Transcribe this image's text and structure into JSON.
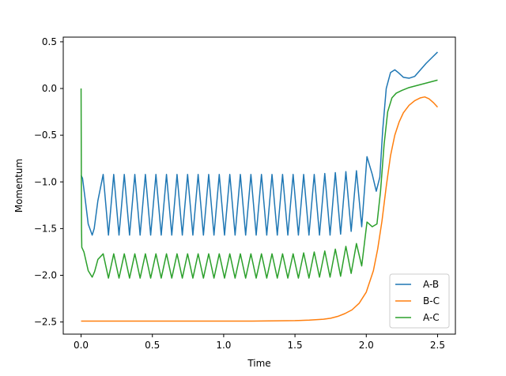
{
  "chart_data": {
    "type": "line",
    "title": "",
    "xlabel": "Time",
    "ylabel": "Momentum",
    "xlim": [
      -0.125,
      2.625
    ],
    "ylim": [
      -2.63,
      0.55
    ],
    "xticks": [
      0.0,
      0.5,
      1.0,
      1.5,
      2.0,
      2.5
    ],
    "xtick_labels": [
      "0.0",
      "0.5",
      "1.0",
      "1.5",
      "2.0",
      "2.5"
    ],
    "yticks": [
      0.5,
      0.0,
      -0.5,
      -1.0,
      -1.5,
      -2.0,
      -2.5
    ],
    "ytick_labels": [
      "0.5",
      "0.0",
      "−0.5",
      "−1.0",
      "−1.5",
      "−2.0",
      "−2.5"
    ],
    "grid": false,
    "legend_position": "lower-right",
    "series": [
      {
        "name": "A-B",
        "color": "#1f77b4",
        "x": [
          0.0,
          0.01,
          0.03,
          0.05,
          0.078,
          0.092,
          0.118,
          0.155,
          0.192,
          0.229,
          0.266,
          0.303,
          0.34,
          0.377,
          0.414,
          0.451,
          0.488,
          0.525,
          0.562,
          0.599,
          0.636,
          0.673,
          0.71,
          0.747,
          0.784,
          0.821,
          0.858,
          0.895,
          0.932,
          0.969,
          1.006,
          1.043,
          1.08,
          1.117,
          1.154,
          1.191,
          1.228,
          1.265,
          1.302,
          1.339,
          1.376,
          1.413,
          1.45,
          1.487,
          1.524,
          1.561,
          1.598,
          1.635,
          1.672,
          1.709,
          1.746,
          1.783,
          1.82,
          1.857,
          1.894,
          1.931,
          1.968,
          2.005,
          2.042,
          2.07,
          2.095,
          2.115,
          2.14,
          2.17,
          2.2,
          2.225,
          2.26,
          2.3,
          2.34,
          2.38,
          2.42,
          2.46,
          2.5
        ],
        "y": [
          -0.93,
          -0.96,
          -1.2,
          -1.45,
          -1.57,
          -1.5,
          -1.2,
          -0.92,
          -1.57,
          -0.92,
          -1.57,
          -0.92,
          -1.57,
          -0.92,
          -1.57,
          -0.92,
          -1.57,
          -0.92,
          -1.57,
          -0.92,
          -1.57,
          -0.92,
          -1.57,
          -0.92,
          -1.57,
          -0.92,
          -1.57,
          -0.92,
          -1.57,
          -0.92,
          -1.57,
          -0.92,
          -1.57,
          -0.92,
          -1.57,
          -0.92,
          -1.57,
          -0.92,
          -1.57,
          -0.92,
          -1.57,
          -0.92,
          -1.57,
          -0.92,
          -1.57,
          -0.92,
          -1.57,
          -0.92,
          -1.57,
          -0.91,
          -1.57,
          -0.9,
          -1.56,
          -0.89,
          -1.53,
          -0.88,
          -1.48,
          -0.73,
          -0.92,
          -1.1,
          -0.95,
          -0.45,
          0.0,
          0.17,
          0.2,
          0.17,
          0.12,
          0.11,
          0.13,
          0.2,
          0.27,
          0.33,
          0.39
        ]
      },
      {
        "name": "B-C",
        "color": "#ff7f0e",
        "x": [
          0.0,
          0.3,
          0.6,
          0.9,
          1.2,
          1.5,
          1.6,
          1.7,
          1.75,
          1.8,
          1.85,
          1.9,
          1.95,
          2.0,
          2.05,
          2.08,
          2.11,
          2.14,
          2.17,
          2.2,
          2.23,
          2.26,
          2.3,
          2.34,
          2.38,
          2.41,
          2.44,
          2.47,
          2.5
        ],
        "y": [
          -2.49,
          -2.49,
          -2.49,
          -2.49,
          -2.49,
          -2.485,
          -2.48,
          -2.47,
          -2.46,
          -2.44,
          -2.41,
          -2.37,
          -2.3,
          -2.18,
          -1.95,
          -1.72,
          -1.42,
          -1.05,
          -0.72,
          -0.5,
          -0.36,
          -0.26,
          -0.18,
          -0.13,
          -0.1,
          -0.09,
          -0.11,
          -0.15,
          -0.2
        ]
      },
      {
        "name": "A-C",
        "color": "#2ca02c",
        "x": [
          0.0,
          0.001,
          0.003,
          0.005,
          0.02,
          0.05,
          0.078,
          0.095,
          0.118,
          0.155,
          0.192,
          0.229,
          0.266,
          0.303,
          0.34,
          0.377,
          0.414,
          0.451,
          0.488,
          0.525,
          0.562,
          0.599,
          0.636,
          0.673,
          0.71,
          0.747,
          0.784,
          0.821,
          0.858,
          0.895,
          0.932,
          0.969,
          1.006,
          1.043,
          1.08,
          1.117,
          1.154,
          1.191,
          1.228,
          1.265,
          1.302,
          1.339,
          1.376,
          1.413,
          1.45,
          1.487,
          1.524,
          1.561,
          1.598,
          1.635,
          1.672,
          1.709,
          1.746,
          1.783,
          1.82,
          1.857,
          1.894,
          1.931,
          1.968,
          2.005,
          2.042,
          2.075,
          2.1,
          2.125,
          2.15,
          2.18,
          2.21,
          2.25,
          2.3,
          2.35,
          2.4,
          2.45,
          2.5
        ],
        "y": [
          0.0,
          -0.5,
          -1.5,
          -1.7,
          -1.75,
          -1.95,
          -2.02,
          -1.96,
          -1.83,
          -1.77,
          -2.03,
          -1.77,
          -2.03,
          -1.77,
          -2.03,
          -1.77,
          -2.03,
          -1.77,
          -2.03,
          -1.77,
          -2.03,
          -1.77,
          -2.03,
          -1.77,
          -2.03,
          -1.77,
          -2.03,
          -1.77,
          -2.03,
          -1.77,
          -2.03,
          -1.77,
          -2.03,
          -1.77,
          -2.03,
          -1.77,
          -2.03,
          -1.77,
          -2.03,
          -1.77,
          -2.03,
          -1.77,
          -2.03,
          -1.77,
          -2.03,
          -1.77,
          -2.03,
          -1.76,
          -2.03,
          -1.75,
          -2.02,
          -1.74,
          -2.02,
          -1.72,
          -2.01,
          -1.69,
          -1.98,
          -1.66,
          -1.9,
          -1.43,
          -1.48,
          -1.45,
          -1.1,
          -0.6,
          -0.25,
          -0.1,
          -0.05,
          -0.02,
          0.01,
          0.03,
          0.05,
          0.07,
          0.09
        ]
      }
    ]
  }
}
